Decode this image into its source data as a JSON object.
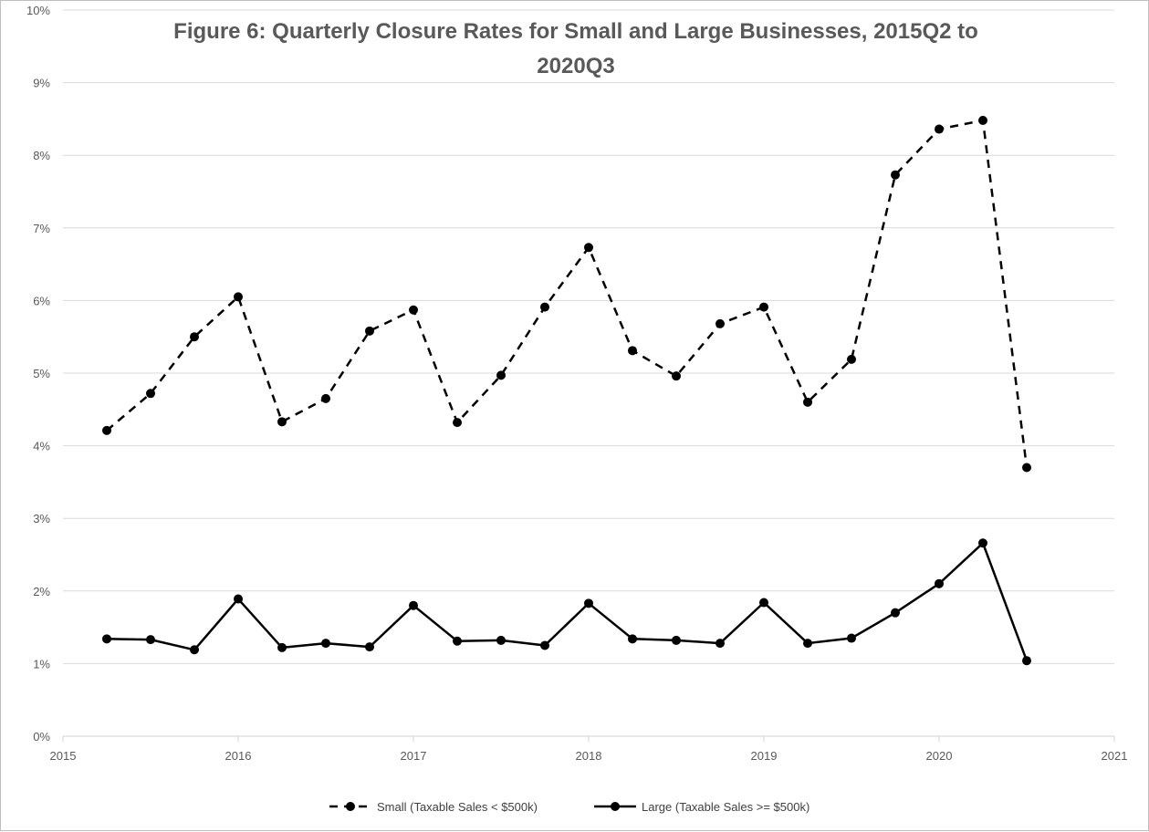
{
  "chart_data": {
    "type": "line",
    "title_lines": [
      "Figure 6: Quarterly Closure Rates for Small and Large Businesses, 2015Q2 to",
      "2020Q3"
    ],
    "xlabel": "",
    "ylabel": "",
    "xlim": [
      2015,
      2021
    ],
    "ylim": [
      0,
      0.1
    ],
    "x_ticks": [
      2015,
      2016,
      2017,
      2018,
      2019,
      2020,
      2021
    ],
    "x_tick_labels": [
      "2015",
      "2016",
      "2017",
      "2018",
      "2019",
      "2020",
      "2021"
    ],
    "y_ticks": [
      0,
      0.01,
      0.02,
      0.03,
      0.04,
      0.05,
      0.06,
      0.07,
      0.08,
      0.09,
      0.1
    ],
    "y_tick_labels": [
      "0%",
      "1%",
      "2%",
      "3%",
      "4%",
      "5%",
      "6%",
      "7%",
      "8%",
      "9%",
      "10%"
    ],
    "grid": "horizontal",
    "legend_position": "bottom",
    "x": [
      2015.25,
      2015.5,
      2015.75,
      2016.0,
      2016.25,
      2016.5,
      2016.75,
      2017.0,
      2017.25,
      2017.5,
      2017.75,
      2018.0,
      2018.25,
      2018.5,
      2018.75,
      2019.0,
      2019.25,
      2019.5,
      2019.75,
      2020.0,
      2020.25,
      2020.5
    ],
    "series": [
      {
        "name": "Small (Taxable Sales < $500k)",
        "style": "dashed",
        "color": "#000000",
        "values": [
          0.0421,
          0.0472,
          0.055,
          0.0605,
          0.0433,
          0.0465,
          0.0558,
          0.0587,
          0.0432,
          0.0497,
          0.0591,
          0.0673,
          0.0531,
          0.0496,
          0.0568,
          0.0591,
          0.046,
          0.0519,
          0.0773,
          0.0836,
          0.0848,
          0.037
        ]
      },
      {
        "name": "Large (Taxable Sales >= $500k)",
        "style": "solid",
        "color": "#000000",
        "values": [
          0.0134,
          0.0133,
          0.0119,
          0.0189,
          0.0122,
          0.0128,
          0.0123,
          0.018,
          0.0131,
          0.0132,
          0.0125,
          0.0183,
          0.0134,
          0.0132,
          0.0128,
          0.0184,
          0.0128,
          0.0135,
          0.017,
          0.021,
          0.0266,
          0.0104
        ]
      }
    ],
    "colors": {
      "grid": "#d9d9d9",
      "axis_text": "#595959",
      "title": "#595959",
      "frame": "#bfbfbf"
    }
  }
}
